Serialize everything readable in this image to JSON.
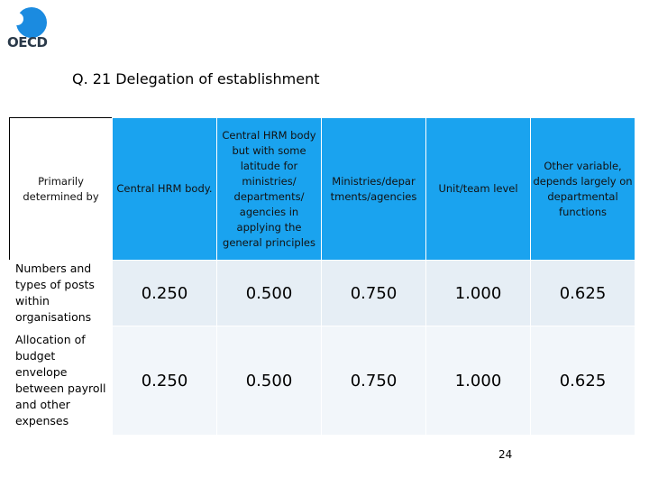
{
  "logo": {
    "text": "OECD"
  },
  "title": "Q. 21 Delegation of establishment",
  "table": {
    "headers": [
      "Primarily determined by",
      "Central HRM body.",
      "Central HRM body but with some latitude for ministries/ departments/ agencies in applying the general principles",
      "Ministries/depar tments/agencies",
      "Unit/team level",
      "Other variable, depends largely on departmental functions"
    ],
    "rows": [
      {
        "label": "Numbers and types of posts within organisations",
        "values": [
          "0.250",
          "0.500",
          "0.750",
          "1.000",
          "0.625"
        ]
      },
      {
        "label": "Allocation of budget envelope between payroll and other expenses",
        "values": [
          "0.250",
          "0.500",
          "0.750",
          "1.000",
          "0.625"
        ]
      }
    ]
  },
  "page_number": "24",
  "colors": {
    "header_bg": "#1aa3ef",
    "row1_bg": "#e6eef5",
    "row2_bg": "#f2f6fa",
    "logo_blue": "#1b8be0"
  }
}
